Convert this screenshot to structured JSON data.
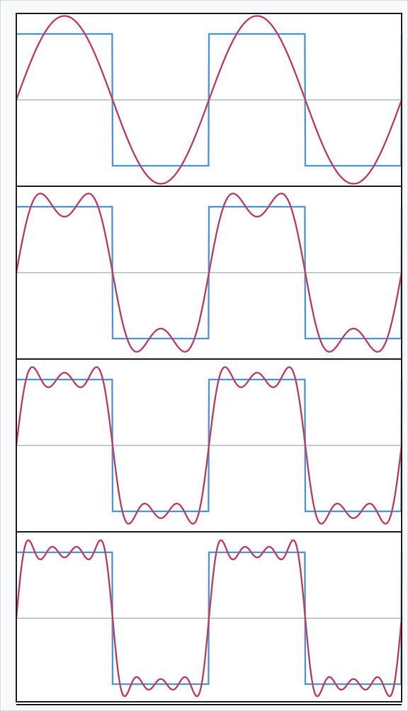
{
  "chart_data": [
    {
      "type": "line",
      "title": "",
      "xlabel": "",
      "ylabel": "",
      "xlim": [
        0,
        4
      ],
      "ylim": [
        -1.3,
        1.3
      ],
      "grid": false,
      "legend": "none",
      "harmonic_terms": 1,
      "series": [
        {
          "values_fn": "square_wave",
          "color": "#4f9ad8"
        },
        {
          "values_fn": "fourier_partial_sum",
          "color": "#c53f63"
        }
      ]
    },
    {
      "type": "line",
      "title": "",
      "xlabel": "",
      "ylabel": "",
      "xlim": [
        0,
        4
      ],
      "ylim": [
        -1.3,
        1.3
      ],
      "grid": false,
      "legend": "none",
      "harmonic_terms": 2,
      "series": [
        {
          "values_fn": "square_wave",
          "color": "#4f9ad8"
        },
        {
          "values_fn": "fourier_partial_sum",
          "color": "#c53f63"
        }
      ]
    },
    {
      "type": "line",
      "title": "",
      "xlabel": "",
      "ylabel": "",
      "xlim": [
        0,
        4
      ],
      "ylim": [
        -1.3,
        1.3
      ],
      "grid": false,
      "legend": "none",
      "harmonic_terms": 3,
      "series": [
        {
          "values_fn": "square_wave",
          "color": "#4f9ad8"
        },
        {
          "values_fn": "fourier_partial_sum",
          "color": "#c53f63"
        }
      ]
    },
    {
      "type": "line",
      "title": "",
      "xlabel": "",
      "ylabel": "",
      "xlim": [
        0,
        4
      ],
      "ylim": [
        -1.3,
        1.3
      ],
      "grid": false,
      "legend": "none",
      "harmonic_terms": 4,
      "series": [
        {
          "values_fn": "square_wave",
          "color": "#4f9ad8"
        },
        {
          "values_fn": "fourier_partial_sum",
          "color": "#c53f63"
        }
      ]
    }
  ],
  "colors": {
    "square_wave": "#4f9ad8",
    "fourier_sum": "#c53f63",
    "axis_zero_line": "#c9cccf",
    "panel_border": "#222222"
  }
}
